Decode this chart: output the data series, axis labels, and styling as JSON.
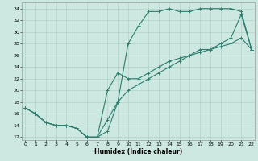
{
  "xlabel": "Humidex (Indice chaleur)",
  "ylabel": "",
  "bg_color": "#cce8e0",
  "line_color": "#2d7d6e",
  "grid_color": "#aaccc4",
  "xlim": [
    -0.3,
    22.3
  ],
  "ylim": [
    11.5,
    35
  ],
  "yticks": [
    12,
    14,
    16,
    18,
    20,
    22,
    24,
    26,
    28,
    30,
    32,
    34
  ],
  "xticks": [
    0,
    1,
    2,
    3,
    4,
    5,
    6,
    7,
    8,
    9,
    10,
    11,
    12,
    13,
    14,
    15,
    16,
    17,
    18,
    19,
    20,
    21,
    22
  ],
  "line1_x": [
    0,
    1,
    2,
    3,
    4,
    5,
    6,
    7,
    8,
    9,
    10,
    11,
    12,
    13,
    14,
    15,
    16,
    17,
    18,
    19,
    20,
    21,
    22
  ],
  "line1_y": [
    17,
    16,
    14.5,
    14,
    14,
    13.5,
    12,
    12,
    15,
    18,
    28,
    31,
    33.5,
    33.5,
    34,
    33.5,
    33.5,
    34,
    34,
    34,
    34,
    33.5,
    27
  ],
  "line2_x": [
    0,
    1,
    2,
    3,
    4,
    5,
    6,
    7,
    8,
    9,
    10,
    11,
    12,
    13,
    14,
    15,
    16,
    17,
    18,
    19,
    20,
    21,
    22
  ],
  "line2_y": [
    17,
    16,
    14.5,
    14,
    14,
    13.5,
    12,
    12,
    20,
    23,
    22,
    22,
    23,
    24,
    25,
    25.5,
    26,
    27,
    27,
    28,
    29,
    33,
    27
  ],
  "line3_x": [
    0,
    1,
    2,
    3,
    4,
    5,
    6,
    7,
    8,
    9,
    10,
    11,
    12,
    13,
    14,
    15,
    16,
    17,
    18,
    19,
    20,
    21,
    22
  ],
  "line3_y": [
    17,
    16,
    14.5,
    14,
    14,
    13.5,
    12,
    12,
    13,
    18,
    20,
    21,
    22,
    23,
    24,
    25,
    26,
    26.5,
    27,
    27.5,
    28,
    29,
    27
  ]
}
